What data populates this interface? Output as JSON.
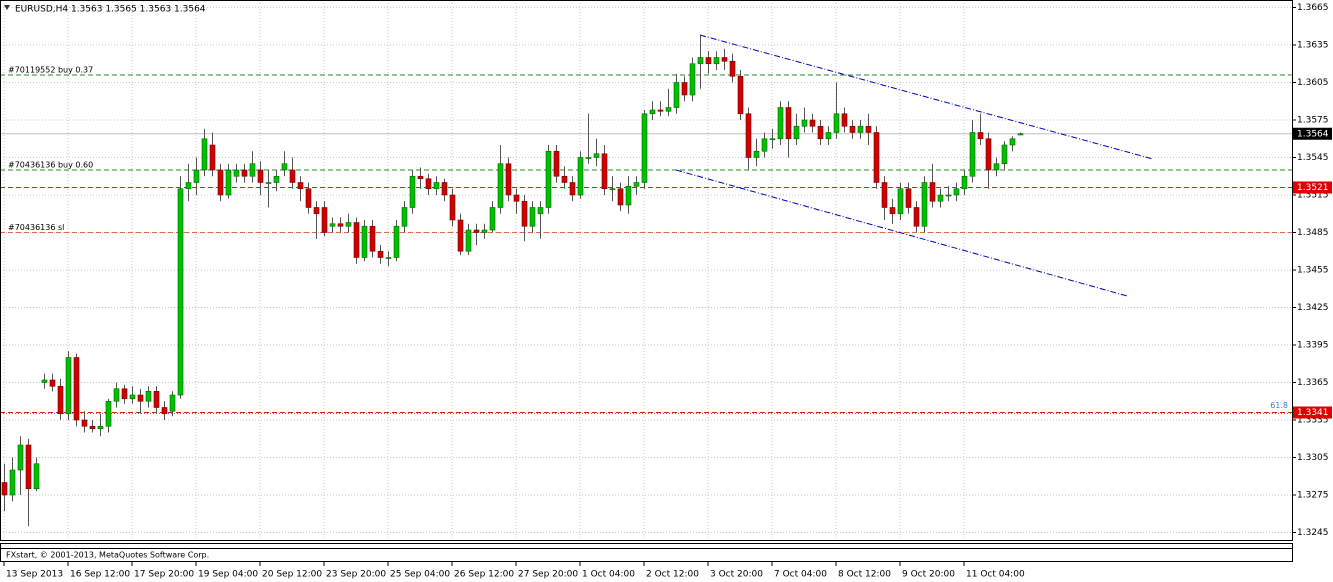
{
  "chart_data": {
    "type": "candlestick",
    "title": "EURUSD,H4  1.3563 1.3565 1.3563 1.3564",
    "footer": "FXstart, © 2001-2013, MetaQuotes Software Corp.",
    "up_color": "#00c000",
    "down_color": "#d00000",
    "grid": true,
    "ylim": [
      1.3239,
      1.3671
    ],
    "yticks": [
      1.3665,
      1.3635,
      1.3605,
      1.3575,
      1.3545,
      1.3515,
      1.3485,
      1.3455,
      1.3425,
      1.3395,
      1.3365,
      1.3335,
      1.3305,
      1.3275,
      1.3245
    ],
    "categories": [
      "13 Sep 2013",
      null,
      null,
      null,
      null,
      null,
      null,
      null,
      "16 Sep 12:00",
      null,
      null,
      null,
      null,
      null,
      null,
      null,
      "17 Sep 20:00",
      null,
      null,
      null,
      null,
      null,
      null,
      null,
      "19 Sep 04:00",
      null,
      null,
      null,
      null,
      null,
      null,
      null,
      "20 Sep 12:00",
      null,
      null,
      null,
      null,
      null,
      null,
      null,
      "23 Sep 20:00",
      null,
      null,
      null,
      null,
      null,
      null,
      null,
      "25 Sep 04:00",
      null,
      null,
      null,
      null,
      null,
      null,
      null,
      "26 Sep 12:00",
      null,
      null,
      null,
      null,
      null,
      null,
      null,
      "27 Sep 20:00",
      null,
      null,
      null,
      null,
      null,
      null,
      null,
      "1 Oct 04:00",
      null,
      null,
      null,
      null,
      null,
      null,
      null,
      "2 Oct 12:00",
      null,
      null,
      null,
      null,
      null,
      null,
      null,
      "3 Oct 20:00",
      null,
      null,
      null,
      null,
      null,
      null,
      null,
      "7 Oct 04:00",
      null,
      null,
      null,
      null,
      null,
      null,
      null,
      "8 Oct 12:00",
      null,
      null,
      null,
      null,
      null,
      null,
      null,
      "9 Oct 20:00",
      null,
      null,
      null,
      null,
      null,
      null,
      null,
      "11 Oct 04:00",
      null,
      null,
      null,
      null,
      null,
      null,
      null
    ],
    "open": [
      1.3285,
      1.3275,
      1.3295,
      1.3315,
      1.328,
      1.3365,
      1.3367,
      1.3362,
      1.334,
      1.3385,
      1.3335,
      1.333,
      1.3328,
      1.333,
      1.335,
      1.336,
      1.3352,
      1.3355,
      1.335,
      1.3358,
      1.3345,
      1.3342,
      1.3355,
      1.352,
      1.3525,
      1.3535,
      1.3555,
      1.3535,
      1.3515,
      1.353,
      1.3535,
      1.353,
      1.3535,
      1.3525,
      1.3525,
      1.3535,
      1.3535,
      1.3525,
      1.352,
      1.3505,
      1.3505,
      1.349,
      1.3492,
      1.349,
      1.3493,
      1.3465,
      1.349,
      1.347,
      1.3465,
      1.3465,
      1.349,
      1.3505,
      1.353,
      1.3528,
      1.352,
      1.3525,
      1.3515,
      1.3495,
      1.347,
      1.3487,
      1.3485,
      1.3487,
      1.3505,
      1.354,
      1.3515,
      1.351,
      1.349,
      1.35,
      1.3505,
      1.355,
      1.353,
      1.3525,
      1.3515,
      1.3545,
      1.3545,
      1.3548,
      1.352,
      1.352,
      1.3507,
      1.3522,
      1.3525,
      1.358,
      1.3583,
      1.3582,
      1.3585,
      1.3605,
      1.3595,
      1.362,
      1.3625,
      1.362,
      1.3625,
      1.3622,
      1.361,
      1.358,
      1.3545,
      1.355,
      1.356,
      1.356,
      1.3585,
      1.356,
      1.357,
      1.3575,
      1.357,
      1.356,
      1.3565,
      1.358,
      1.357,
      1.3565,
      1.357,
      1.3565,
      1.3525,
      1.3505,
      1.35,
      1.352,
      1.3505,
      1.349,
      1.3525,
      1.351,
      1.3515,
      1.3515,
      1.352,
      1.353,
      1.3565,
      1.356,
      1.3535,
      1.354,
      1.3555,
      1.3563
    ],
    "high": [
      1.33,
      1.3305,
      1.3322,
      1.332,
      1.3305,
      1.3372,
      1.3372,
      1.3368,
      1.339,
      1.3388,
      1.3342,
      1.3335,
      1.334,
      1.3352,
      1.3365,
      1.3363,
      1.3362,
      1.336,
      1.3362,
      1.3362,
      1.335,
      1.3358,
      1.353,
      1.354,
      1.3545,
      1.3568,
      1.3565,
      1.354,
      1.354,
      1.354,
      1.354,
      1.355,
      1.3542,
      1.3535,
      1.3535,
      1.355,
      1.3545,
      1.353,
      1.3525,
      1.351,
      1.351,
      1.3497,
      1.3497,
      1.35,
      1.3497,
      1.3495,
      1.3495,
      1.3475,
      1.347,
      1.3495,
      1.351,
      1.3535,
      1.3537,
      1.3532,
      1.353,
      1.3528,
      1.352,
      1.35,
      1.3492,
      1.3492,
      1.3492,
      1.351,
      1.3555,
      1.3545,
      1.352,
      1.3515,
      1.351,
      1.351,
      1.3555,
      1.3555,
      1.3538,
      1.353,
      1.355,
      1.358,
      1.356,
      1.3555,
      1.353,
      1.3525,
      1.353,
      1.353,
      1.3583,
      1.359,
      1.359,
      1.36,
      1.3612,
      1.361,
      1.3625,
      1.3643,
      1.363,
      1.363,
      1.3632,
      1.3628,
      1.3615,
      1.3585,
      1.356,
      1.3565,
      1.3568,
      1.359,
      1.359,
      1.358,
      1.3585,
      1.358,
      1.3575,
      1.357,
      1.3605,
      1.3585,
      1.3575,
      1.3575,
      1.358,
      1.357,
      1.353,
      1.3512,
      1.3525,
      1.3525,
      1.351,
      1.353,
      1.354,
      1.352,
      1.3522,
      1.3525,
      1.3535,
      1.3575,
      1.358,
      1.3565,
      1.3545,
      1.3558,
      1.3562,
      1.3565
    ],
    "low": [
      1.3262,
      1.327,
      1.3275,
      1.325,
      1.3278,
      1.336,
      1.3358,
      1.3335,
      1.3335,
      1.333,
      1.3325,
      1.3325,
      1.3322,
      1.3325,
      1.3345,
      1.3348,
      1.3348,
      1.334,
      1.3345,
      1.334,
      1.3335,
      1.3338,
      1.3352,
      1.351,
      1.3515,
      1.353,
      1.353,
      1.351,
      1.3512,
      1.3525,
      1.3525,
      1.3525,
      1.3515,
      1.3505,
      1.3518,
      1.353,
      1.352,
      1.351,
      1.35,
      1.348,
      1.3482,
      1.3485,
      1.3485,
      1.3485,
      1.346,
      1.3462,
      1.3465,
      1.346,
      1.3458,
      1.3462,
      1.3485,
      1.35,
      1.352,
      1.3515,
      1.3515,
      1.351,
      1.349,
      1.3467,
      1.3467,
      1.3475,
      1.348,
      1.3485,
      1.35,
      1.351,
      1.35,
      1.3478,
      1.3485,
      1.348,
      1.35,
      1.3525,
      1.352,
      1.351,
      1.3512,
      1.354,
      1.3538,
      1.3515,
      1.351,
      1.3502,
      1.35,
      1.3515,
      1.352,
      1.3575,
      1.3578,
      1.3578,
      1.358,
      1.359,
      1.359,
      1.36,
      1.3612,
      1.3615,
      1.3615,
      1.3605,
      1.3575,
      1.3535,
      1.3538,
      1.3545,
      1.3552,
      1.3555,
      1.3545,
      1.3555,
      1.3565,
      1.3565,
      1.3555,
      1.3555,
      1.356,
      1.3565,
      1.356,
      1.356,
      1.3555,
      1.352,
      1.3495,
      1.3492,
      1.3495,
      1.35,
      1.3485,
      1.3485,
      1.3505,
      1.3505,
      1.351,
      1.351,
      1.3515,
      1.3525,
      1.3555,
      1.352,
      1.353,
      1.3535,
      1.355,
      1.3563
    ],
    "close": [
      1.3275,
      1.3295,
      1.3315,
      1.328,
      1.33,
      1.3367,
      1.3362,
      1.334,
      1.3385,
      1.3335,
      1.333,
      1.3328,
      1.333,
      1.335,
      1.336,
      1.3352,
      1.3355,
      1.335,
      1.3358,
      1.3345,
      1.334,
      1.3355,
      1.352,
      1.3525,
      1.3535,
      1.356,
      1.3535,
      1.3515,
      1.3535,
      1.3535,
      1.353,
      1.354,
      1.3525,
      1.3525,
      1.353,
      1.354,
      1.3525,
      1.352,
      1.3505,
      1.35,
      1.3485,
      1.3492,
      1.349,
      1.3493,
      1.3465,
      1.349,
      1.347,
      1.3465,
      1.3465,
      1.349,
      1.3505,
      1.353,
      1.3528,
      1.352,
      1.3525,
      1.3515,
      1.3495,
      1.347,
      1.3487,
      1.3485,
      1.3487,
      1.3505,
      1.354,
      1.3515,
      1.351,
      1.349,
      1.3505,
      1.3505,
      1.355,
      1.353,
      1.3525,
      1.3515,
      1.3545,
      1.3545,
      1.3548,
      1.352,
      1.352,
      1.3507,
      1.3522,
      1.3525,
      1.358,
      1.3583,
      1.3582,
      1.3585,
      1.3605,
      1.3595,
      1.362,
      1.3625,
      1.362,
      1.3625,
      1.3622,
      1.361,
      1.358,
      1.3545,
      1.355,
      1.356,
      1.356,
      1.3585,
      1.356,
      1.357,
      1.3575,
      1.357,
      1.356,
      1.3565,
      1.358,
      1.357,
      1.3565,
      1.357,
      1.3565,
      1.3525,
      1.3505,
      1.35,
      1.352,
      1.3505,
      1.349,
      1.3525,
      1.351,
      1.3515,
      1.3515,
      1.352,
      1.353,
      1.3565,
      1.356,
      1.3535,
      1.354,
      1.3555,
      1.356,
      1.3564
    ],
    "levels": [
      {
        "text": "#70119552 buy 0.37",
        "price": 1.3611,
        "color": "#2a8a2a"
      },
      {
        "text": "#70436136 buy 0.60",
        "price": 1.3535,
        "color": "#2a8a2a"
      },
      {
        "text": "#70436136 sl",
        "price": 1.3485,
        "color": "#e06a3a"
      }
    ],
    "price_marks": [
      {
        "price": 1.3564,
        "color": "#000000",
        "line_color": "#c0c0c0"
      },
      {
        "price": 1.3521,
        "color": "#e00000",
        "line_color": "#d02020"
      },
      {
        "price": 1.3341,
        "color": "#e00000",
        "line_color": "#d02020"
      }
    ],
    "fib": {
      "text": "61.8",
      "price": 1.3341,
      "color": "#3a7fd0"
    },
    "trendlines": [
      {
        "x1": 87,
        "y1": 1.3643,
        "x2": 143.5,
        "y2": 1.3544,
        "color": "#0000c0"
      },
      {
        "x1": 84,
        "y1": 1.3535,
        "x2": 140.5,
        "y2": 1.3434,
        "color": "#0000c0"
      }
    ]
  }
}
